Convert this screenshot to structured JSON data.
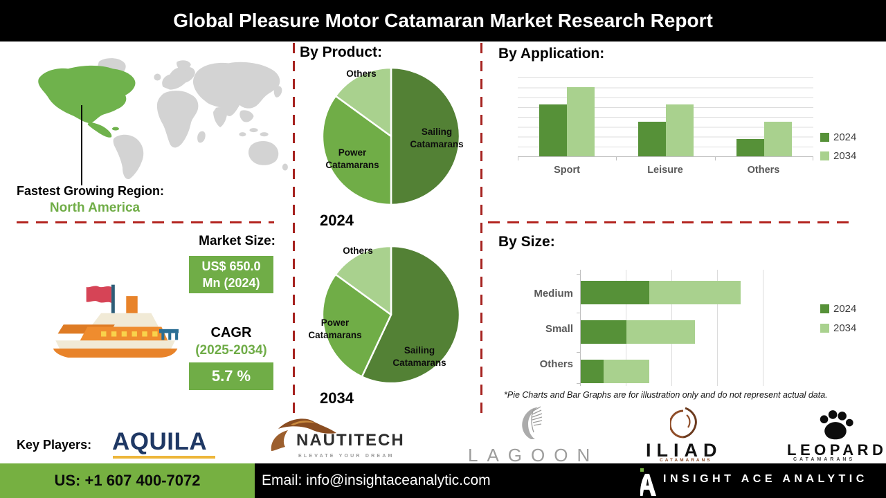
{
  "page_title": "Global Pleasure Motor Catamaran Market Research Report",
  "region_callout": {
    "heading": "Fastest Growing Region:",
    "region": "North America"
  },
  "market_size": {
    "heading": "Market Size:",
    "value_line1": "US$ 650.0",
    "value_line2": "Mn (2024)",
    "cagr_label": "CAGR",
    "cagr_period": "(2025-2034)",
    "cagr_value": "5.7 %"
  },
  "disclaimer": "*Pie Charts and Bar Graphs are for illustration only and do not represent actual data.",
  "key_players": {
    "heading": "Key Players:",
    "brands": [
      "AQUILA",
      "NAUTITECH",
      "LAGOON",
      "ILIAD",
      "LEOPARD"
    ],
    "nautitech_tagline": "ELEVATE YOUR DREAM",
    "iliad_sub": "CATAMARANS",
    "leopard_sub": "CATAMARANS"
  },
  "footer": {
    "phone": "US: +1 607 400-7072",
    "email": "Email: info@insightaceanalytic.com",
    "brand": "INSIGHT ACE ANALYTIC"
  },
  "chart_data": [
    {
      "type": "pie",
      "title": "By Product:",
      "year_label": "2024",
      "slices": [
        {
          "label": "Sailing Catamarans",
          "value": 50,
          "color": "#538135"
        },
        {
          "label": "Power Catamarans",
          "value": 35,
          "color": "#70AD47"
        },
        {
          "label": "Others",
          "value": 15,
          "color": "#A9D18E"
        }
      ]
    },
    {
      "type": "pie",
      "title": "By Product:",
      "year_label": "2034",
      "slices": [
        {
          "label": "Sailing Catamarans",
          "value": 57,
          "color": "#538135"
        },
        {
          "label": "Power Catamarans",
          "value": 28,
          "color": "#70AD47"
        },
        {
          "label": "Others",
          "value": 15,
          "color": "#A9D18E"
        }
      ]
    },
    {
      "type": "bar",
      "title": "By Application:",
      "categories": [
        "Sport",
        "Leisure",
        "Others"
      ],
      "series": [
        {
          "name": "2024",
          "values": [
            66,
            44,
            22
          ],
          "color": "#569138"
        },
        {
          "name": "2034",
          "values": [
            88,
            66,
            44
          ],
          "color": "#A9D18E"
        }
      ],
      "ylim": [
        0,
        100
      ],
      "gridlines": 8,
      "legend_position": "right"
    },
    {
      "type": "stacked-bar-horizontal",
      "title": "By Size:",
      "categories": [
        "Medium",
        "Small",
        "Others"
      ],
      "series": [
        {
          "name": "2024",
          "values": [
            1.5,
            1.0,
            0.5
          ],
          "color": "#569138"
        },
        {
          "name": "2034",
          "values": [
            2.0,
            1.5,
            1.0
          ],
          "color": "#A9D18E"
        }
      ],
      "xlim": [
        0,
        4.25
      ],
      "gridline_interval": 1,
      "legend_position": "right"
    }
  ],
  "colors": {
    "accent_green": "#70AD47",
    "dark_green": "#538135",
    "light_green": "#A9D18E",
    "map_green": "#6FB24C",
    "map_gray": "#D3D3D3",
    "dashed_red": "#A6221F",
    "footer_green": "#76B041",
    "aquila_navy": "#1F3864",
    "aquila_gold": "#EDB63A",
    "copper": "#9C5F2E",
    "logo_gray": "#9D9D9C"
  }
}
